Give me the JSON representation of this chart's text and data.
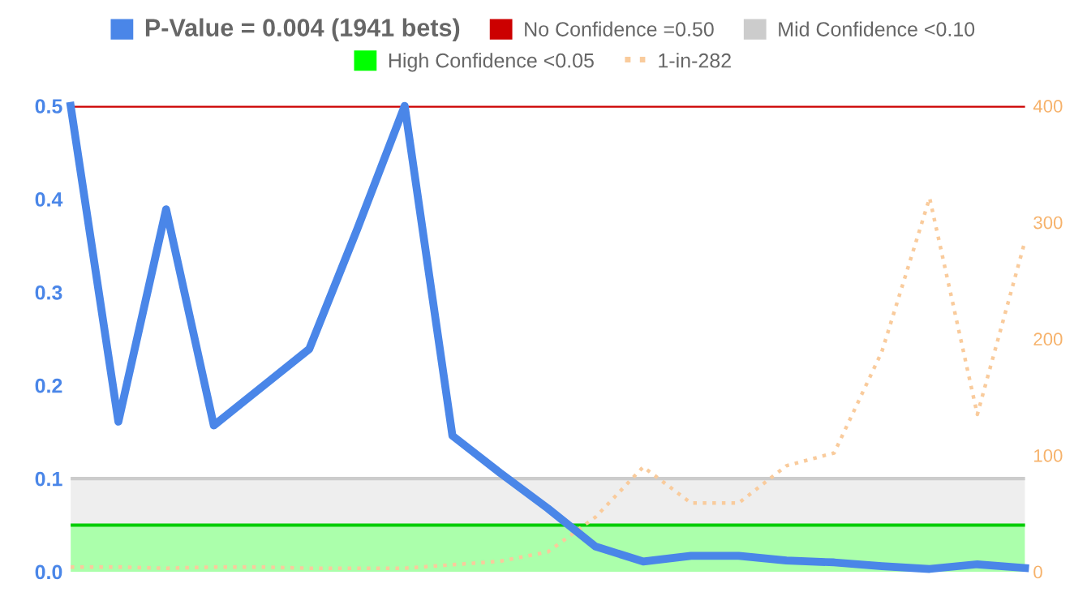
{
  "chart_data": {
    "type": "line",
    "categories": [
      null,
      null,
      null,
      null,
      null,
      null,
      null,
      null,
      null,
      null,
      null,
      null,
      null,
      null,
      null,
      null,
      null,
      null,
      null,
      null,
      null
    ],
    "series": [
      {
        "name": "P-Value = 0.004 (1941 bets)",
        "color": "#4a86e8",
        "values": [
          0.5,
          0.161,
          0.389,
          0.157,
          0.198,
          0.239,
          0.367,
          0.5,
          0.146,
          0.106,
          0.068,
          0.027,
          0.011,
          0.017,
          0.017,
          0.012,
          0.01,
          0.006,
          0.003,
          0.008,
          0.004
        ]
      },
      {
        "name": "1-in-282",
        "color": "#f9cb9c",
        "axis": "y2",
        "line_style": "dotted",
        "values": [
          4,
          4,
          3,
          4,
          4,
          3,
          3,
          3,
          6,
          9,
          17,
          47,
          90,
          59,
          59,
          91,
          102,
          189,
          321,
          135,
          284
        ]
      }
    ],
    "ylim": [
      0,
      0.5
    ],
    "yticks": [
      {
        "value": 0,
        "label": "0.0"
      },
      0.1,
      0.2,
      0.3,
      0.4,
      0.5
    ],
    "y2lim": [
      0,
      400
    ],
    "y2ticks": [
      0,
      100,
      200,
      300,
      400
    ],
    "ref_lines": [
      {
        "axis": "y",
        "value": 0.5,
        "label": "No Confidence =0.50",
        "color": "#cc0000"
      },
      {
        "axis": "y",
        "value": 0.1,
        "color": "#cccccc"
      },
      {
        "axis": "y",
        "value": 0.05,
        "color": "#00cc00"
      }
    ],
    "bands": [
      {
        "axis": "y",
        "from": 0.05,
        "to": 0.1,
        "label": "Mid Confidence <0.10",
        "color": "#cccccc"
      },
      {
        "axis": "y",
        "from": 0,
        "to": 0.05,
        "label": "High Confidence <0.05",
        "color": "#00ff00"
      }
    ],
    "legend": "top",
    "grid": false
  }
}
